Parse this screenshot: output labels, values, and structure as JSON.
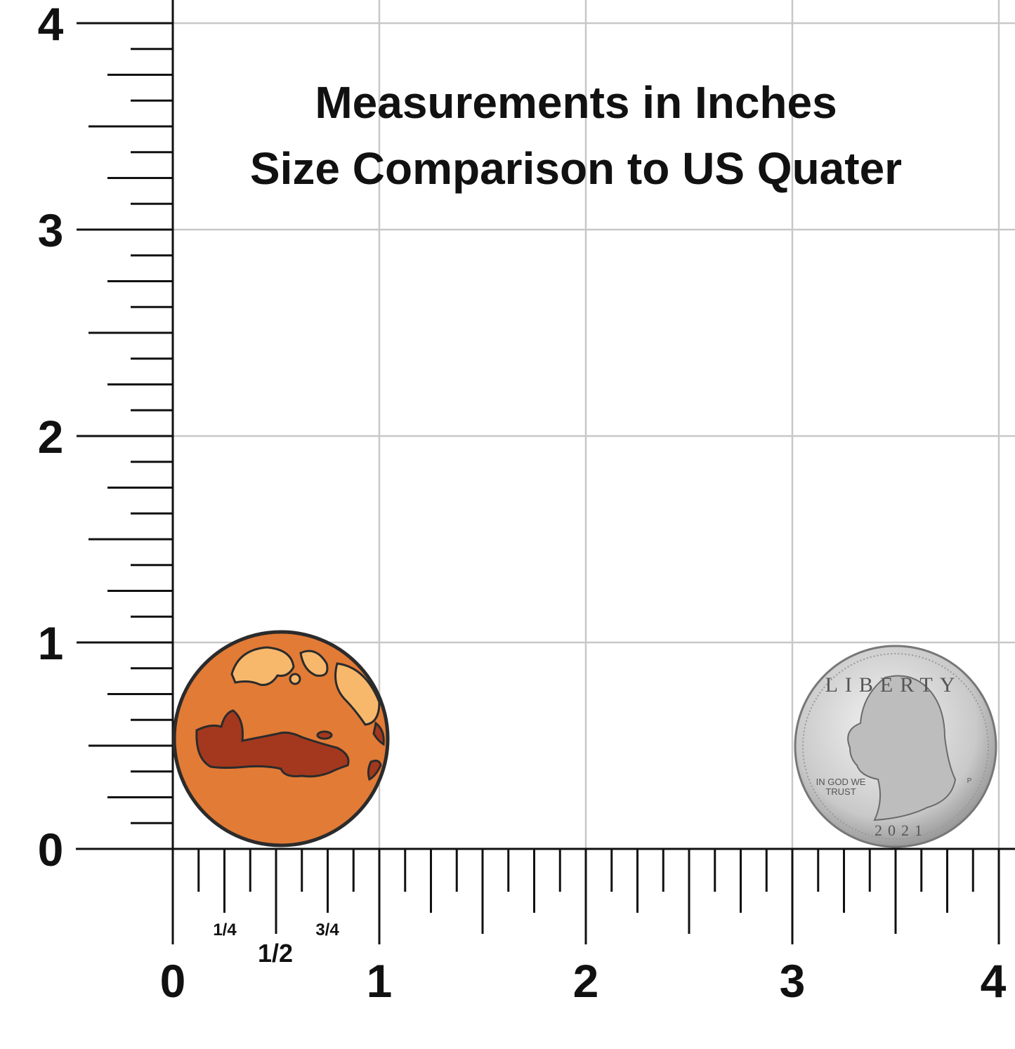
{
  "title": [
    "Measurements in Inches",
    "Size Comparison to US Quater"
  ],
  "y_axis_labels": [
    "0",
    "1",
    "2",
    "3",
    "4"
  ],
  "x_axis_labels": [
    "0",
    "1",
    "2",
    "3",
    "4"
  ],
  "fraction_labels": [
    "1/4",
    "1/2",
    "3/4"
  ],
  "coin": {
    "top": "LIBERTY",
    "motto": [
      "IN GOD WE",
      "TRUST"
    ],
    "year": "2021",
    "mint": "P"
  }
}
